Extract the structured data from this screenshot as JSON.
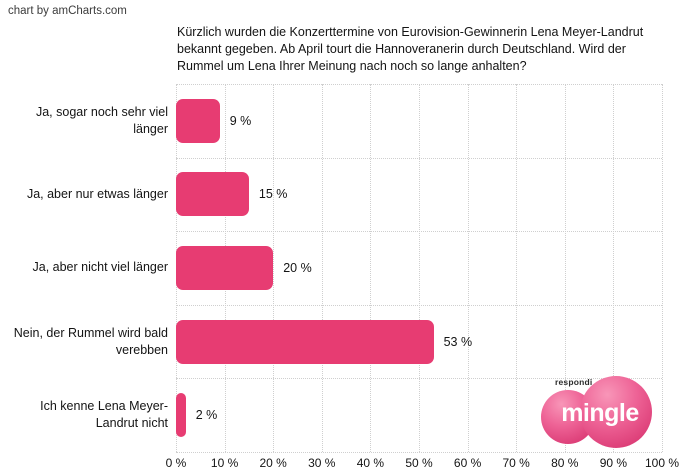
{
  "credit": "chart by amCharts.com",
  "title_lines": [
    "Kürzlich wurden die Konzerttermine von Eurovision-Gewinnerin Lena Meyer-Landrut",
    "bekannt gegeben. Ab April tourt die Hannoveranerin durch Deutschland. Wird der",
    "Rummel um Lena Ihrer Meinung nach noch so lange anhalten?"
  ],
  "chart_data": {
    "type": "bar",
    "orientation": "horizontal",
    "title": "Kürzlich wurden die Konzerttermine von Eurovision-Gewinnerin Lena Meyer-Landrut bekannt gegeben. Ab April tourt die Hannoveranerin durch Deutschland. Wird der Rummel um Lena Ihrer Meinung nach noch so lange anhalten?",
    "categories": [
      "Ja, sogar noch sehr viel länger",
      "Ja, aber nur etwas länger",
      "Ja, aber nicht viel länger",
      "Nein, der Rummel wird bald verebben",
      "Ich kenne Lena Meyer-Landrut nicht"
    ],
    "values": [
      9,
      15,
      20,
      53,
      2
    ],
    "value_labels": [
      "9 %",
      "15 %",
      "20 %",
      "53 %",
      "2 %"
    ],
    "x_ticks": [
      "0 %",
      "10 %",
      "20 %",
      "30 %",
      "40 %",
      "50 %",
      "60 %",
      "70 %",
      "80 %",
      "90 %",
      "100 %"
    ],
    "xlim": [
      0,
      100
    ],
    "xlabel": "",
    "ylabel": "",
    "grid": "dotted",
    "legend": "none",
    "bar_color": "#e73c72"
  },
  "logo": {
    "sub_brand": "respondi",
    "brand": "mingle",
    "color": "#d32a67"
  }
}
